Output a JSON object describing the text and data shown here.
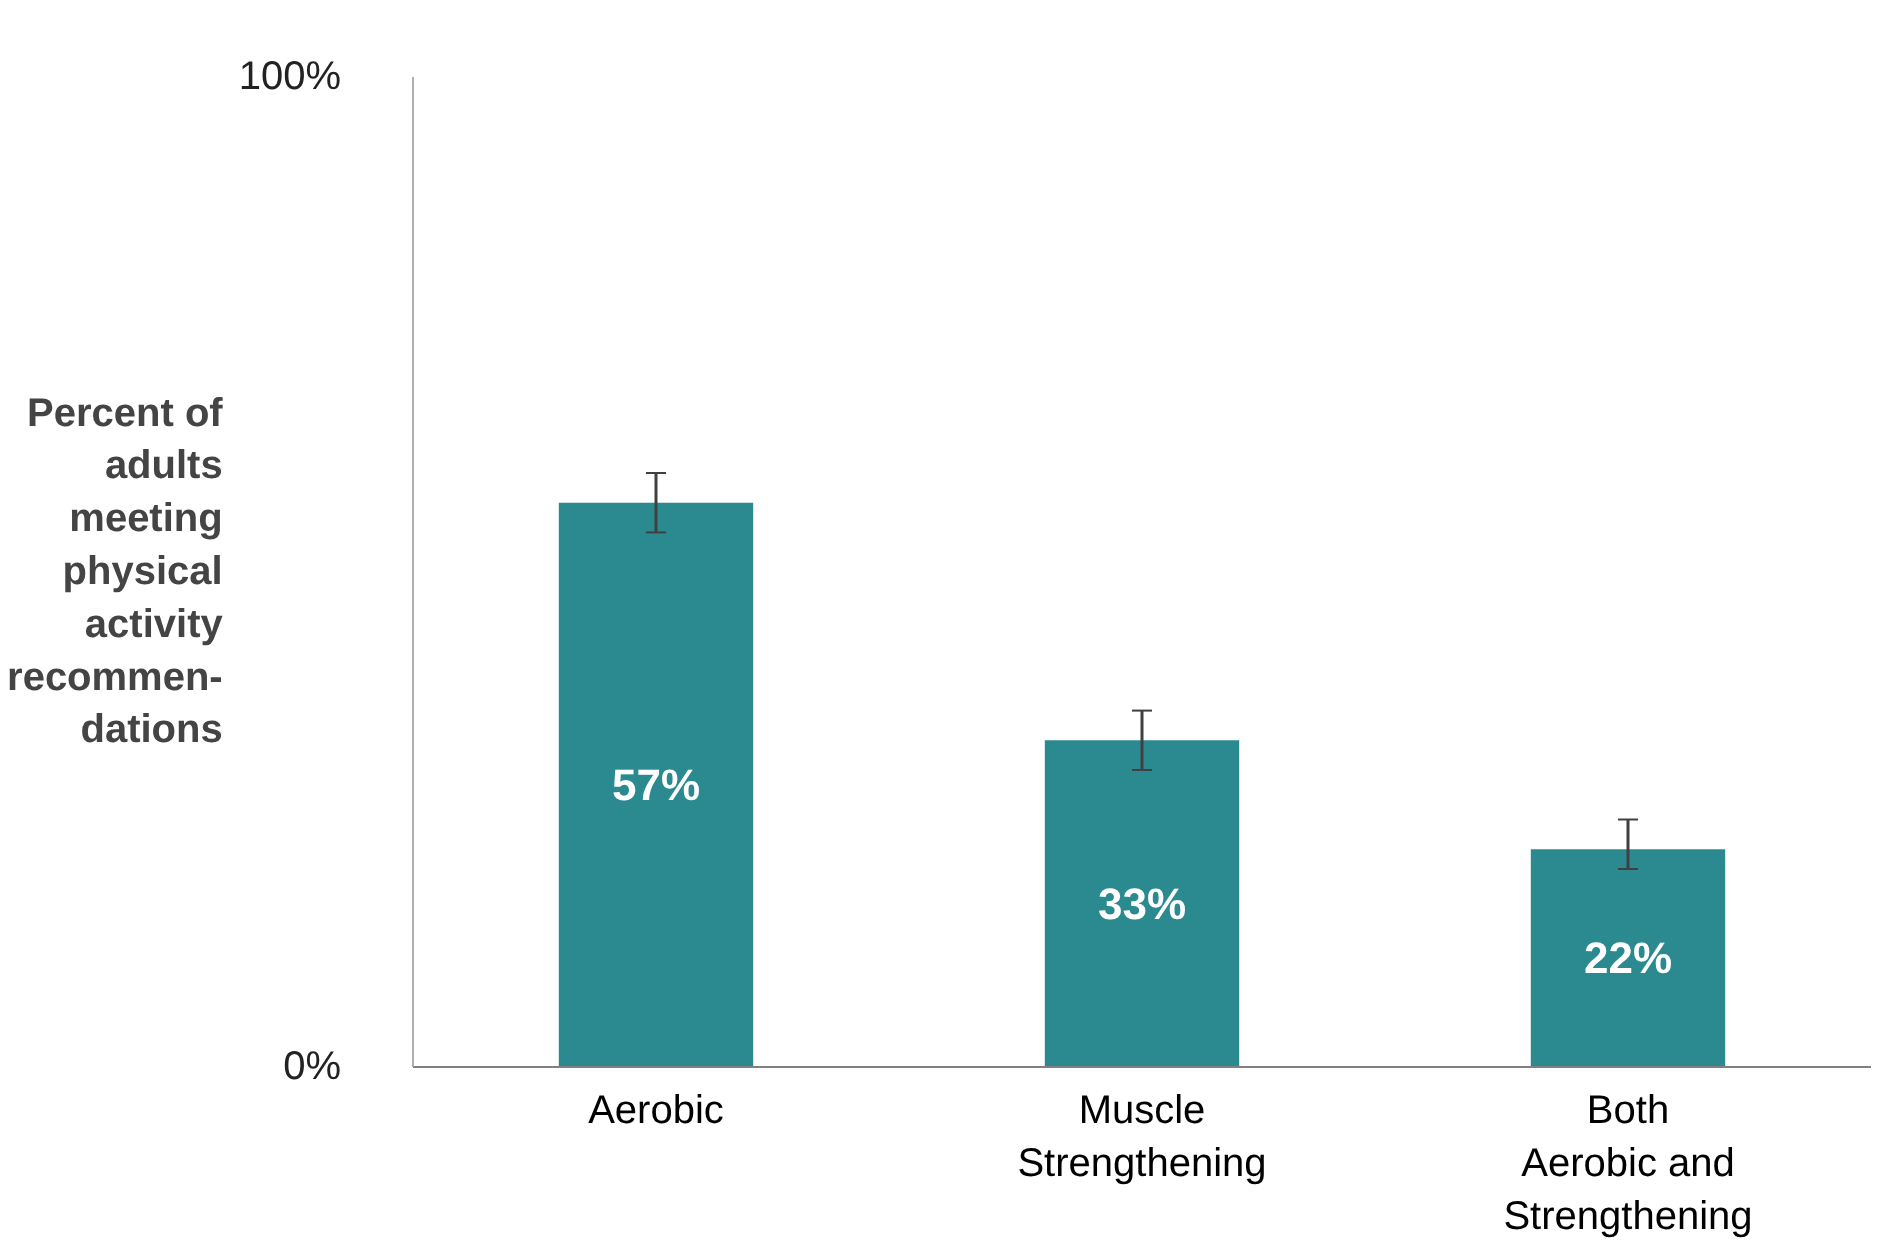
{
  "chart_data": {
    "type": "bar",
    "categories": [
      "Aerobic",
      "Muscle\nStrengthening",
      "Both\nAerobic and\nStrengthening"
    ],
    "values": [
      57,
      33,
      22
    ],
    "errors": [
      [
        54,
        60
      ],
      [
        30,
        36
      ],
      [
        20,
        25
      ]
    ],
    "value_labels": [
      "57%",
      "33%",
      "22%"
    ],
    "color": "#2a8a8f",
    "ylabel": "Percent of\nadults\nmeeting\nphysical\nactivity\nrecommen-\ndations",
    "ylim": [
      0,
      100
    ],
    "yticks": [
      {
        "value": 0,
        "label": "0%"
      },
      {
        "value": 100,
        "label": "100%"
      }
    ],
    "grid": false
  }
}
